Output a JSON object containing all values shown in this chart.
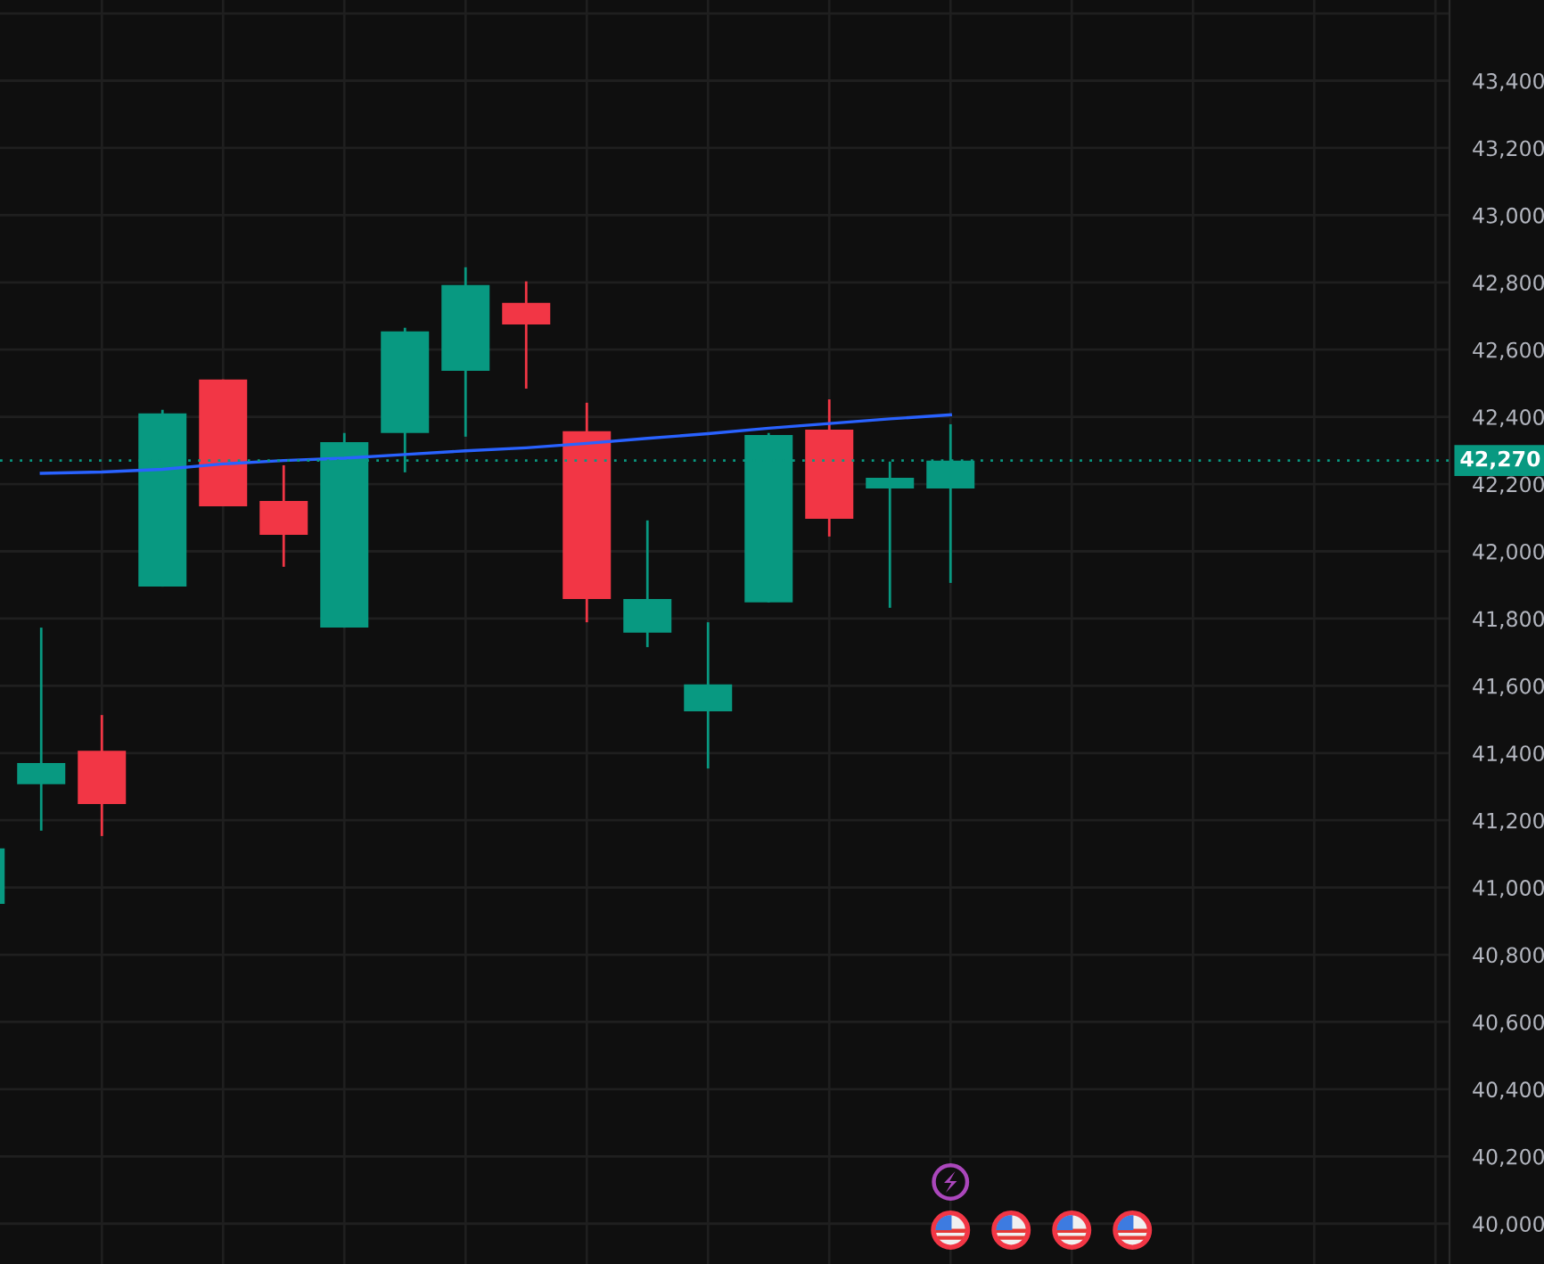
{
  "chart_data": {
    "type": "candlestick",
    "categories": [
      null,
      null,
      null,
      null,
      null,
      null,
      null,
      null,
      null,
      null,
      null,
      null,
      null,
      null,
      null,
      null,
      null
    ],
    "ohlc": [
      [
        40951,
        41116,
        40951,
        41116
      ],
      [
        41307,
        41773,
        41169,
        41370
      ],
      [
        41407,
        41513,
        41153,
        41248
      ],
      [
        41895,
        42421,
        41895,
        42410
      ],
      [
        42511,
        42511,
        42134,
        42134
      ],
      [
        42150,
        42256,
        41954,
        42049
      ],
      [
        41773,
        42352,
        41773,
        42325
      ],
      [
        42352,
        42665,
        42235,
        42654
      ],
      [
        42537,
        42845,
        42341,
        42792
      ],
      [
        42739,
        42803,
        42484,
        42675
      ],
      [
        42357,
        42442,
        41789,
        41858
      ],
      [
        41758,
        42092,
        41715,
        41858
      ],
      [
        41524,
        41789,
        41354,
        41604
      ],
      [
        41848,
        42352,
        41848,
        42346
      ],
      [
        42362,
        42452,
        42044,
        42097
      ],
      [
        42187,
        42267,
        41832,
        42219
      ],
      [
        42187,
        42378,
        41906,
        42270
      ]
    ],
    "colors": [
      "#089981",
      "#089981",
      "#f23645",
      "#089981",
      "#f23645",
      "#f23645",
      "#089981",
      "#089981",
      "#089981",
      "#f23645",
      "#f23645",
      "#089981",
      "#089981",
      "#089981",
      "#f23645",
      "#089981",
      "#089981"
    ],
    "series": [
      {
        "type": "line",
        "color": "#2962ff",
        "values": [
          null,
          42232,
          42236,
          42244,
          42260,
          42270,
          42277,
          42288,
          42299,
          42308,
          42321,
          42336,
          42350,
          42366,
          42380,
          42394,
          42406
        ]
      }
    ],
    "ylim": [
      39880,
      43640
    ],
    "yticks": [
      {
        "value": 40000,
        "label": "40,000"
      },
      {
        "value": 40200,
        "label": "40,200"
      },
      {
        "value": 40400,
        "label": "40,400"
      },
      {
        "value": 40600,
        "label": "40,600"
      },
      {
        "value": 40800,
        "label": "40,800"
      },
      {
        "value": 41000,
        "label": "41,000"
      },
      {
        "value": 41200,
        "label": "41,200"
      },
      {
        "value": 41400,
        "label": "41,400"
      },
      {
        "value": 41600,
        "label": "41,600"
      },
      {
        "value": 41800,
        "label": "41,800"
      },
      {
        "value": 42000,
        "label": "42,000"
      },
      {
        "value": 42200,
        "label": "42,200"
      },
      {
        "value": 42400,
        "label": "42,400"
      },
      {
        "value": 42600,
        "label": "42,600"
      },
      {
        "value": 42800,
        "label": "42,800"
      },
      {
        "value": 43000,
        "label": "43,000"
      },
      {
        "value": 43200,
        "label": "43,200"
      },
      {
        "value": 43400,
        "label": "43,400"
      },
      {
        "value": 43600,
        "label": null
      }
    ],
    "ref_lines": [
      {
        "axis": "y",
        "value": 42270,
        "label": "42,270",
        "color": "#089981",
        "line_style": "dotted"
      }
    ],
    "grid": true,
    "tick_labels": "y"
  }
}
